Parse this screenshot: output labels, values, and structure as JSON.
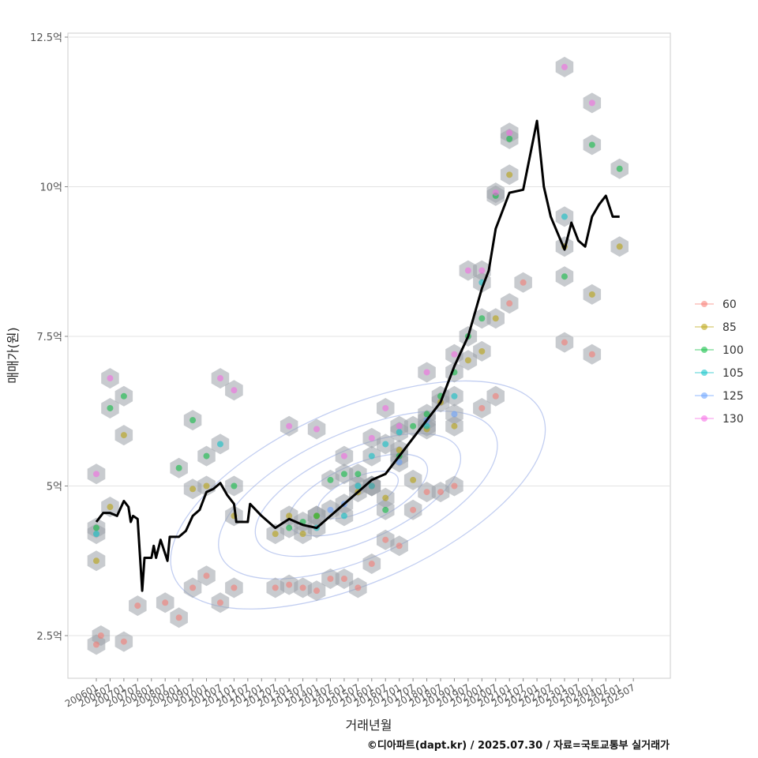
{
  "chart_data": {
    "type": "scatter",
    "xlabel": "거래년월",
    "ylabel": "매매가(원)",
    "caption": "©디아파트(dapt.kr) / 2025.07.30 / 자료=국토교통부 실거래가",
    "x_ticks": [
      "200601",
      "200607",
      "200701",
      "200707",
      "200801",
      "200807",
      "200901",
      "200907",
      "201001",
      "201007",
      "201101",
      "201107",
      "201201",
      "201207",
      "201301",
      "201307",
      "201401",
      "201407",
      "201501",
      "201507",
      "201601",
      "201607",
      "201701",
      "201707",
      "201801",
      "201807",
      "201901",
      "201907",
      "202001",
      "202007",
      "202101",
      "202107",
      "202201",
      "202207",
      "202301",
      "202307",
      "202401",
      "202407",
      "202501",
      "202507"
    ],
    "y_ticks": [
      {
        "value": 2.5,
        "label": "2.5억"
      },
      {
        "value": 5,
        "label": "5억"
      },
      {
        "value": 7.5,
        "label": "7.5억"
      },
      {
        "value": 10,
        "label": "10억"
      },
      {
        "value": 12.5,
        "label": "12.5억"
      }
    ],
    "ylim": [
      1.8,
      12.55
    ],
    "grid": true,
    "legend_position": "right",
    "legend": [
      {
        "name": "60",
        "color": "#F8766D"
      },
      {
        "name": "85",
        "color": "#B79F00"
      },
      {
        "name": "100",
        "color": "#00BA38"
      },
      {
        "name": "105",
        "color": "#00BFC4"
      },
      {
        "name": "125",
        "color": "#619CFF"
      },
      {
        "name": "130",
        "color": "#F564E3"
      }
    ],
    "series": [
      {
        "type": "line",
        "color": "#000000",
        "points": [
          [
            "200601",
            4.4
          ],
          [
            "200604",
            4.55
          ],
          [
            "200607",
            4.55
          ],
          [
            "200610",
            4.5
          ],
          [
            "200701",
            4.75
          ],
          [
            "200703",
            4.65
          ],
          [
            "200704",
            4.4
          ],
          [
            "200705",
            4.5
          ],
          [
            "200707",
            4.45
          ],
          [
            "200709",
            3.25
          ],
          [
            "200710",
            3.8
          ],
          [
            "200801",
            3.8
          ],
          [
            "200802",
            4.0
          ],
          [
            "200803",
            3.8
          ],
          [
            "200805",
            4.1
          ],
          [
            "200808",
            3.75
          ],
          [
            "200809",
            4.15
          ],
          [
            "200901",
            4.15
          ],
          [
            "200904",
            4.25
          ],
          [
            "200907",
            4.5
          ],
          [
            "200910",
            4.6
          ],
          [
            "201001",
            4.9
          ],
          [
            "201004",
            4.95
          ],
          [
            "201007",
            5.05
          ],
          [
            "201010",
            4.85
          ],
          [
            "201101",
            4.7
          ],
          [
            "201102",
            4.4
          ],
          [
            "201107",
            4.4
          ],
          [
            "201108",
            4.7
          ],
          [
            "201201",
            4.5
          ],
          [
            "201207",
            4.3
          ],
          [
            "201301",
            4.45
          ],
          [
            "201307",
            4.35
          ],
          [
            "201401",
            4.3
          ],
          [
            "201407",
            4.5
          ],
          [
            "201501",
            4.7
          ],
          [
            "201507",
            4.9
          ],
          [
            "201601",
            5.1
          ],
          [
            "201607",
            5.2
          ],
          [
            "201701",
            5.5
          ],
          [
            "201707",
            5.8
          ],
          [
            "201801",
            6.1
          ],
          [
            "201807",
            6.4
          ],
          [
            "201901",
            7.0
          ],
          [
            "201907",
            7.5
          ],
          [
            "202001",
            8.3
          ],
          [
            "202004",
            8.6
          ],
          [
            "202007",
            9.3
          ],
          [
            "202101",
            9.9
          ],
          [
            "202107",
            9.95
          ],
          [
            "202201",
            11.1
          ],
          [
            "202204",
            10.0
          ],
          [
            "202207",
            9.5
          ],
          [
            "202301",
            8.95
          ],
          [
            "202304",
            9.4
          ],
          [
            "202307",
            9.1
          ],
          [
            "202310",
            9.0
          ],
          [
            "202401",
            9.5
          ],
          [
            "202404",
            9.7
          ],
          [
            "202407",
            9.85
          ],
          [
            "202410",
            9.5
          ],
          [
            "202501",
            9.5
          ]
        ]
      },
      {
        "type": "points",
        "name": "60",
        "points": [
          [
            "200601",
            2.35
          ],
          [
            "200603",
            2.5
          ],
          [
            "200701",
            2.4
          ],
          [
            "200707",
            3.0
          ],
          [
            "200807",
            3.05
          ],
          [
            "200901",
            2.8
          ],
          [
            "200907",
            3.3
          ],
          [
            "201001",
            3.5
          ],
          [
            "201007",
            3.05
          ],
          [
            "201101",
            3.3
          ],
          [
            "201207",
            3.3
          ],
          [
            "201301",
            3.35
          ],
          [
            "201307",
            3.3
          ],
          [
            "201401",
            3.25
          ],
          [
            "201407",
            3.45
          ],
          [
            "201501",
            3.45
          ],
          [
            "201507",
            3.3
          ],
          [
            "201601",
            3.7
          ],
          [
            "201607",
            4.1
          ],
          [
            "201701",
            4.0
          ],
          [
            "201707",
            4.6
          ],
          [
            "201801",
            4.9
          ],
          [
            "201807",
            4.9
          ],
          [
            "201901",
            5.0
          ],
          [
            "202001",
            6.3
          ],
          [
            "202007",
            6.5
          ],
          [
            "202101",
            8.05
          ],
          [
            "202107",
            8.4
          ],
          [
            "202301",
            7.4
          ],
          [
            "202401",
            7.2
          ]
        ]
      },
      {
        "type": "points",
        "name": "85",
        "points": [
          [
            "200601",
            3.75
          ],
          [
            "200607",
            4.65
          ],
          [
            "200701",
            5.85
          ],
          [
            "200907",
            4.95
          ],
          [
            "201001",
            5.0
          ],
          [
            "201101",
            4.5
          ],
          [
            "201207",
            4.2
          ],
          [
            "201301",
            4.5
          ],
          [
            "201307",
            4.2
          ],
          [
            "201401",
            4.5
          ],
          [
            "201507",
            4.9
          ],
          [
            "201601",
            5.0
          ],
          [
            "201607",
            4.8
          ],
          [
            "201701",
            5.6
          ],
          [
            "201707",
            5.1
          ],
          [
            "201801",
            5.95
          ],
          [
            "201807",
            6.4
          ],
          [
            "201901",
            6.0
          ],
          [
            "201907",
            7.1
          ],
          [
            "202001",
            7.25
          ],
          [
            "202007",
            7.8
          ],
          [
            "202101",
            10.2
          ],
          [
            "202301",
            9.0
          ],
          [
            "202401",
            8.2
          ],
          [
            "202501",
            9.0
          ]
        ]
      },
      {
        "type": "points",
        "name": "100",
        "points": [
          [
            "200601",
            4.3
          ],
          [
            "200607",
            6.3
          ],
          [
            "200701",
            6.5
          ],
          [
            "200901",
            5.3
          ],
          [
            "200907",
            6.1
          ],
          [
            "201001",
            5.5
          ],
          [
            "201101",
            5.0
          ],
          [
            "201301",
            4.3
          ],
          [
            "201307",
            4.4
          ],
          [
            "201401",
            4.5
          ],
          [
            "201407",
            5.1
          ],
          [
            "201501",
            5.2
          ],
          [
            "201507",
            5.2
          ],
          [
            "201601",
            5.0
          ],
          [
            "201607",
            4.6
          ],
          [
            "201701",
            5.5
          ],
          [
            "201707",
            6.0
          ],
          [
            "201801",
            6.2
          ],
          [
            "201807",
            6.5
          ],
          [
            "201901",
            6.9
          ],
          [
            "201907",
            7.5
          ],
          [
            "202001",
            7.8
          ],
          [
            "202007",
            9.85
          ],
          [
            "202101",
            10.8
          ],
          [
            "202301",
            8.5
          ],
          [
            "202401",
            10.7
          ],
          [
            "202501",
            10.3
          ]
        ]
      },
      {
        "type": "points",
        "name": "105",
        "points": [
          [
            "200601",
            4.2
          ],
          [
            "201007",
            5.7
          ],
          [
            "201401",
            4.3
          ],
          [
            "201501",
            4.5
          ],
          [
            "201507",
            5.0
          ],
          [
            "201601",
            5.5
          ],
          [
            "201607",
            5.7
          ],
          [
            "201701",
            5.9
          ],
          [
            "201801",
            6.0
          ],
          [
            "201901",
            6.5
          ],
          [
            "202001",
            8.4
          ],
          [
            "202301",
            9.5
          ]
        ]
      },
      {
        "type": "points",
        "name": "125",
        "points": [
          [
            "201407",
            4.6
          ],
          [
            "201501",
            4.7
          ],
          [
            "201601",
            5.0
          ],
          [
            "201701",
            5.4
          ],
          [
            "201801",
            6.1
          ],
          [
            "201901",
            6.2
          ]
        ]
      },
      {
        "type": "points",
        "name": "130",
        "points": [
          [
            "200601",
            5.2
          ],
          [
            "200607",
            6.8
          ],
          [
            "201007",
            6.8
          ],
          [
            "201101",
            6.6
          ],
          [
            "201301",
            6.0
          ],
          [
            "201401",
            5.95
          ],
          [
            "201501",
            5.5
          ],
          [
            "201601",
            5.8
          ],
          [
            "201607",
            6.3
          ],
          [
            "201701",
            6.0
          ],
          [
            "201801",
            6.9
          ],
          [
            "201901",
            7.2
          ],
          [
            "201907",
            8.6
          ],
          [
            "202001",
            8.6
          ],
          [
            "202007",
            9.9
          ],
          [
            "202101",
            10.9
          ],
          [
            "202301",
            12.0
          ],
          [
            "202401",
            11.4
          ]
        ]
      }
    ]
  }
}
